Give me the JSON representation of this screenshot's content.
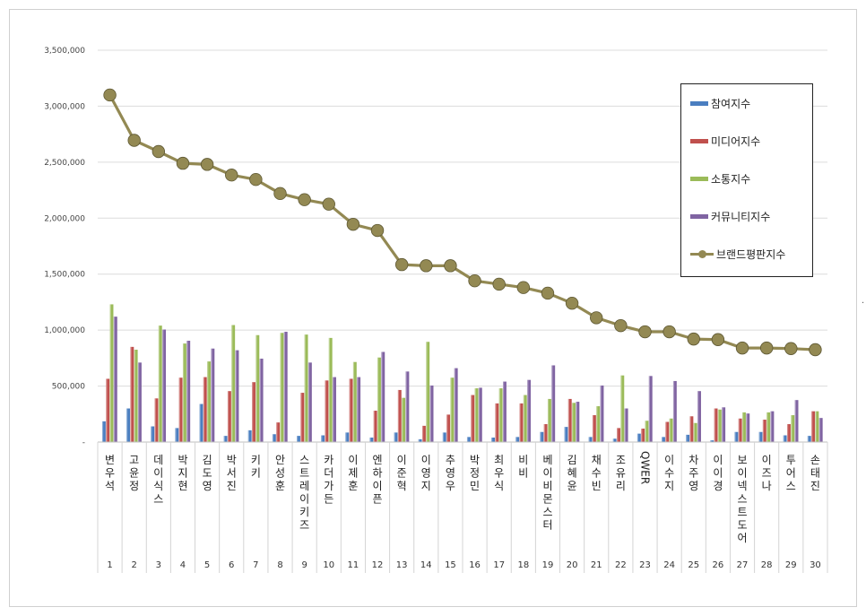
{
  "chart_data": {
    "type": "bar",
    "title": "",
    "xlabel": "",
    "ylabel": "",
    "ylim": [
      0,
      3500000
    ],
    "yticks": [
      "-",
      "500,000",
      "1,000,000",
      "1,500,000",
      "2,000,000",
      "2,500,000",
      "3,000,000",
      "3,500,000"
    ],
    "grid": true,
    "legend_position": "top-right",
    "categories": [
      "변우석",
      "고윤정",
      "데이식스",
      "박지현",
      "김도영",
      "박서진",
      "키키",
      "안성훈",
      "스트레이키즈",
      "카더가든",
      "이제훈",
      "엔하이픈",
      "이준혁",
      "이영지",
      "추영우",
      "박정민",
      "최우식",
      "비비",
      "베이비몬스터",
      "김혜윤",
      "채수빈",
      "조유리",
      "QWER",
      "이수지",
      "차주영",
      "이이경",
      "보이넥스트도어",
      "이즈나",
      "투어스",
      "손태진"
    ],
    "ranks": [
      "1",
      "2",
      "3",
      "4",
      "5",
      "6",
      "7",
      "8",
      "9",
      "10",
      "11",
      "12",
      "13",
      "14",
      "15",
      "16",
      "17",
      "18",
      "19",
      "20",
      "21",
      "22",
      "23",
      "24",
      "25",
      "26",
      "27",
      "28",
      "29",
      "30"
    ],
    "series": [
      {
        "name": "참여지수",
        "kind": "bar",
        "color": "#4a7ec0",
        "values": [
          185000,
          300000,
          140000,
          125000,
          340000,
          55000,
          105000,
          70000,
          55000,
          60000,
          85000,
          40000,
          85000,
          25000,
          85000,
          45000,
          40000,
          45000,
          90000,
          135000,
          45000,
          30000,
          75000,
          45000,
          65000,
          15000,
          90000,
          90000,
          60000,
          55000
        ]
      },
      {
        "name": "미디어지수",
        "kind": "bar",
        "color": "#c0504d",
        "values": [
          565000,
          850000,
          390000,
          575000,
          580000,
          455000,
          535000,
          175000,
          440000,
          550000,
          565000,
          280000,
          465000,
          145000,
          245000,
          420000,
          345000,
          345000,
          160000,
          385000,
          240000,
          125000,
          120000,
          180000,
          230000,
          300000,
          210000,
          200000,
          160000,
          275000
        ]
      },
      {
        "name": "소통지수",
        "kind": "bar",
        "color": "#9bbb59",
        "values": [
          1230000,
          825000,
          1040000,
          880000,
          720000,
          1045000,
          955000,
          975000,
          960000,
          930000,
          715000,
          755000,
          395000,
          895000,
          575000,
          480000,
          480000,
          420000,
          385000,
          350000,
          320000,
          595000,
          190000,
          210000,
          170000,
          290000,
          265000,
          265000,
          240000,
          275000
        ]
      },
      {
        "name": "커뮤니티지수",
        "kind": "bar",
        "color": "#8064a2",
        "values": [
          1120000,
          710000,
          1005000,
          905000,
          835000,
          820000,
          745000,
          985000,
          710000,
          580000,
          580000,
          805000,
          630000,
          505000,
          660000,
          485000,
          540000,
          555000,
          685000,
          360000,
          505000,
          300000,
          590000,
          545000,
          455000,
          310000,
          255000,
          275000,
          375000,
          215000
        ]
      },
      {
        "name": "브랜드평판지수",
        "kind": "line",
        "color": "#938953",
        "values": [
          3100000,
          2695000,
          2595000,
          2490000,
          2480000,
          2385000,
          2345000,
          2220000,
          2165000,
          2125000,
          1945000,
          1890000,
          1585000,
          1575000,
          1575000,
          1440000,
          1410000,
          1380000,
          1330000,
          1240000,
          1110000,
          1040000,
          985000,
          985000,
          920000,
          915000,
          840000,
          840000,
          835000,
          825000
        ]
      }
    ]
  }
}
